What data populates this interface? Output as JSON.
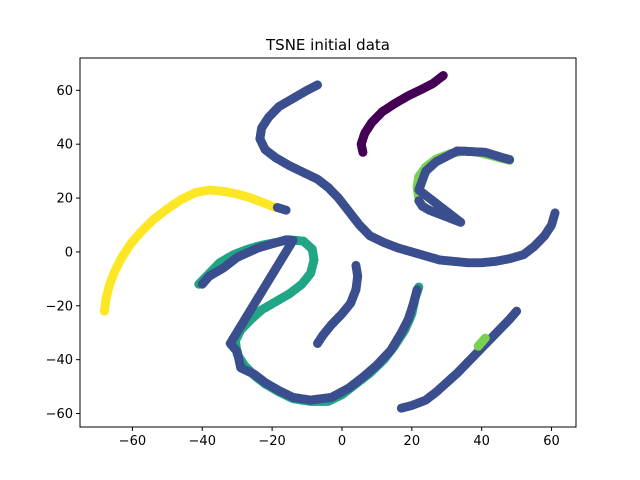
{
  "chart_data": {
    "type": "scatter",
    "title": "TSNE initial data",
    "xlabel": "",
    "ylabel": "",
    "xlim": [
      -75,
      67
    ],
    "ylim": [
      -65,
      72
    ],
    "xticks": [
      -60,
      -40,
      -20,
      0,
      20,
      40,
      60
    ],
    "yticks": [
      -60,
      -40,
      -20,
      0,
      20,
      40,
      60
    ],
    "grid": false,
    "colors": {
      "c0": "#440154",
      "c1": "#3b4f8f",
      "c2": "#21a685",
      "c3": "#7ad151",
      "c4": "#fde725"
    },
    "series": [
      {
        "color_key": "c4",
        "points": [
          [
            -68,
            -22
          ],
          [
            -67.5,
            -17
          ],
          [
            -66.5,
            -12
          ],
          [
            -65,
            -7
          ],
          [
            -63,
            -2
          ],
          [
            -60.5,
            3
          ],
          [
            -57.5,
            7.5
          ],
          [
            -54,
            12
          ],
          [
            -50,
            16
          ],
          [
            -46,
            19.5
          ],
          [
            -42,
            22
          ],
          [
            -38,
            23
          ],
          [
            -34,
            22.5
          ],
          [
            -30,
            21.5
          ],
          [
            -26,
            20
          ],
          [
            -22,
            18
          ],
          [
            -19,
            16.5
          ]
        ]
      },
      {
        "color_key": "c1",
        "points": [
          [
            -16,
            15.5
          ],
          [
            -18.5,
            16.5
          ]
        ]
      },
      {
        "color_key": "c0",
        "points": [
          [
            6,
            37
          ],
          [
            5.5,
            40
          ],
          [
            6.5,
            44
          ],
          [
            8.5,
            48
          ],
          [
            11.5,
            52
          ],
          [
            15,
            55
          ],
          [
            19,
            58
          ],
          [
            23,
            60.5
          ],
          [
            26,
            62.5
          ],
          [
            29,
            65.5
          ]
        ]
      },
      {
        "color_key": "c1",
        "points": [
          [
            -7,
            62
          ],
          [
            -10,
            60
          ],
          [
            -14,
            57
          ],
          [
            -18,
            54
          ],
          [
            -21,
            50
          ],
          [
            -23,
            46
          ],
          [
            -23.5,
            42
          ],
          [
            -22,
            38
          ],
          [
            -19,
            35
          ],
          [
            -15,
            32
          ],
          [
            -11,
            29.5
          ],
          [
            -7,
            27
          ],
          [
            -4,
            24
          ],
          [
            -1,
            20
          ],
          [
            2,
            15
          ],
          [
            5,
            10
          ],
          [
            8,
            6
          ],
          [
            12,
            3.5
          ],
          [
            16,
            1.5
          ],
          [
            20,
            0
          ],
          [
            24,
            -1.5
          ],
          [
            28,
            -3
          ],
          [
            32,
            -3.5
          ],
          [
            36,
            -4
          ],
          [
            40,
            -4
          ],
          [
            44,
            -3.5
          ],
          [
            48,
            -2.5
          ],
          [
            52,
            -1
          ],
          [
            55,
            2
          ],
          [
            58,
            6
          ],
          [
            60,
            10
          ],
          [
            61,
            14.5
          ]
        ]
      },
      {
        "color_key": "c3",
        "points": [
          [
            22,
            20
          ],
          [
            21.5,
            24
          ],
          [
            22,
            28
          ],
          [
            24,
            31.5
          ],
          [
            27,
            34.5
          ],
          [
            31,
            36.5
          ],
          [
            35,
            37.5
          ],
          [
            39,
            37
          ],
          [
            42,
            36
          ],
          [
            45,
            35
          ],
          [
            48,
            34
          ]
        ]
      },
      {
        "color_key": "c1",
        "points": [
          [
            22,
            19
          ],
          [
            23,
            17
          ],
          [
            25,
            15.5
          ],
          [
            28,
            14
          ],
          [
            31,
            12.5
          ],
          [
            34,
            11
          ],
          [
            22,
            23
          ],
          [
            24,
            30
          ],
          [
            27,
            33.5
          ],
          [
            33,
            37.5
          ],
          [
            41,
            37
          ],
          [
            46,
            35
          ],
          [
            48,
            34.3
          ]
        ]
      },
      {
        "color_key": "c2",
        "points": [
          [
            -41,
            -12
          ],
          [
            -38,
            -8
          ],
          [
            -35,
            -4
          ],
          [
            -31,
            -1
          ],
          [
            -27,
            1
          ],
          [
            -23,
            2.5
          ],
          [
            -19,
            3.5
          ],
          [
            -15,
            4.5
          ],
          [
            -11,
            4
          ],
          [
            -8.5,
            1
          ],
          [
            -8,
            -3
          ],
          [
            -9,
            -8
          ],
          [
            -11.5,
            -12
          ],
          [
            -15,
            -15.5
          ],
          [
            -19,
            -18.5
          ],
          [
            -23,
            -21.5
          ],
          [
            -26,
            -25
          ],
          [
            -29,
            -29
          ],
          [
            -30.5,
            -33
          ],
          [
            -30,
            -38
          ],
          [
            -28,
            -42
          ],
          [
            -25,
            -46
          ],
          [
            -22,
            -49
          ],
          [
            -18,
            -52
          ],
          [
            -14,
            -54.5
          ],
          [
            -9,
            -55.5
          ],
          [
            -4,
            -55.5
          ],
          [
            0,
            -53
          ],
          [
            4,
            -49
          ],
          [
            8,
            -45
          ],
          [
            12,
            -40
          ],
          [
            15,
            -35
          ],
          [
            18,
            -29
          ],
          [
            20,
            -23
          ],
          [
            21,
            -17
          ],
          [
            22,
            -13
          ]
        ]
      },
      {
        "color_key": "c1",
        "points": [
          [
            -40,
            -12
          ],
          [
            -38,
            -9
          ],
          [
            -34,
            -6
          ],
          [
            -30,
            -2
          ],
          [
            -24,
            1.5
          ],
          [
            -20,
            3
          ],
          [
            -16,
            4.5
          ],
          [
            -14,
            4.3
          ],
          [
            -32,
            -34
          ],
          [
            -30,
            -37
          ],
          [
            -29,
            -43
          ],
          [
            -25,
            -45.5
          ],
          [
            -22,
            -48.5
          ],
          [
            -18,
            -51.5
          ],
          [
            -14,
            -54
          ],
          [
            -9,
            -55
          ],
          [
            -3,
            -54
          ],
          [
            2,
            -50.5
          ],
          [
            6,
            -46.5
          ],
          [
            10,
            -42
          ],
          [
            14,
            -36.5
          ],
          [
            17,
            -30
          ],
          [
            19,
            -25
          ],
          [
            20.5,
            -19
          ],
          [
            21.5,
            -14
          ]
        ]
      },
      {
        "color_key": "c1",
        "points": [
          [
            4,
            -5
          ],
          [
            4.5,
            -9
          ],
          [
            4,
            -14
          ],
          [
            2.5,
            -19
          ],
          [
            0,
            -23
          ],
          [
            -3,
            -27
          ],
          [
            -5.5,
            -31
          ],
          [
            -7,
            -34
          ]
        ]
      },
      {
        "color_key": "c1",
        "points": [
          [
            17,
            -58
          ],
          [
            20,
            -57
          ],
          [
            24,
            -55
          ],
          [
            27,
            -52
          ],
          [
            30,
            -48.5
          ],
          [
            33,
            -45
          ],
          [
            36,
            -41
          ],
          [
            39,
            -37
          ],
          [
            42,
            -33
          ],
          [
            45,
            -29
          ],
          [
            48,
            -25
          ],
          [
            50,
            -22
          ]
        ]
      },
      {
        "color_key": "c3",
        "points": [
          [
            39,
            -35
          ],
          [
            41,
            -32
          ]
        ]
      }
    ]
  }
}
